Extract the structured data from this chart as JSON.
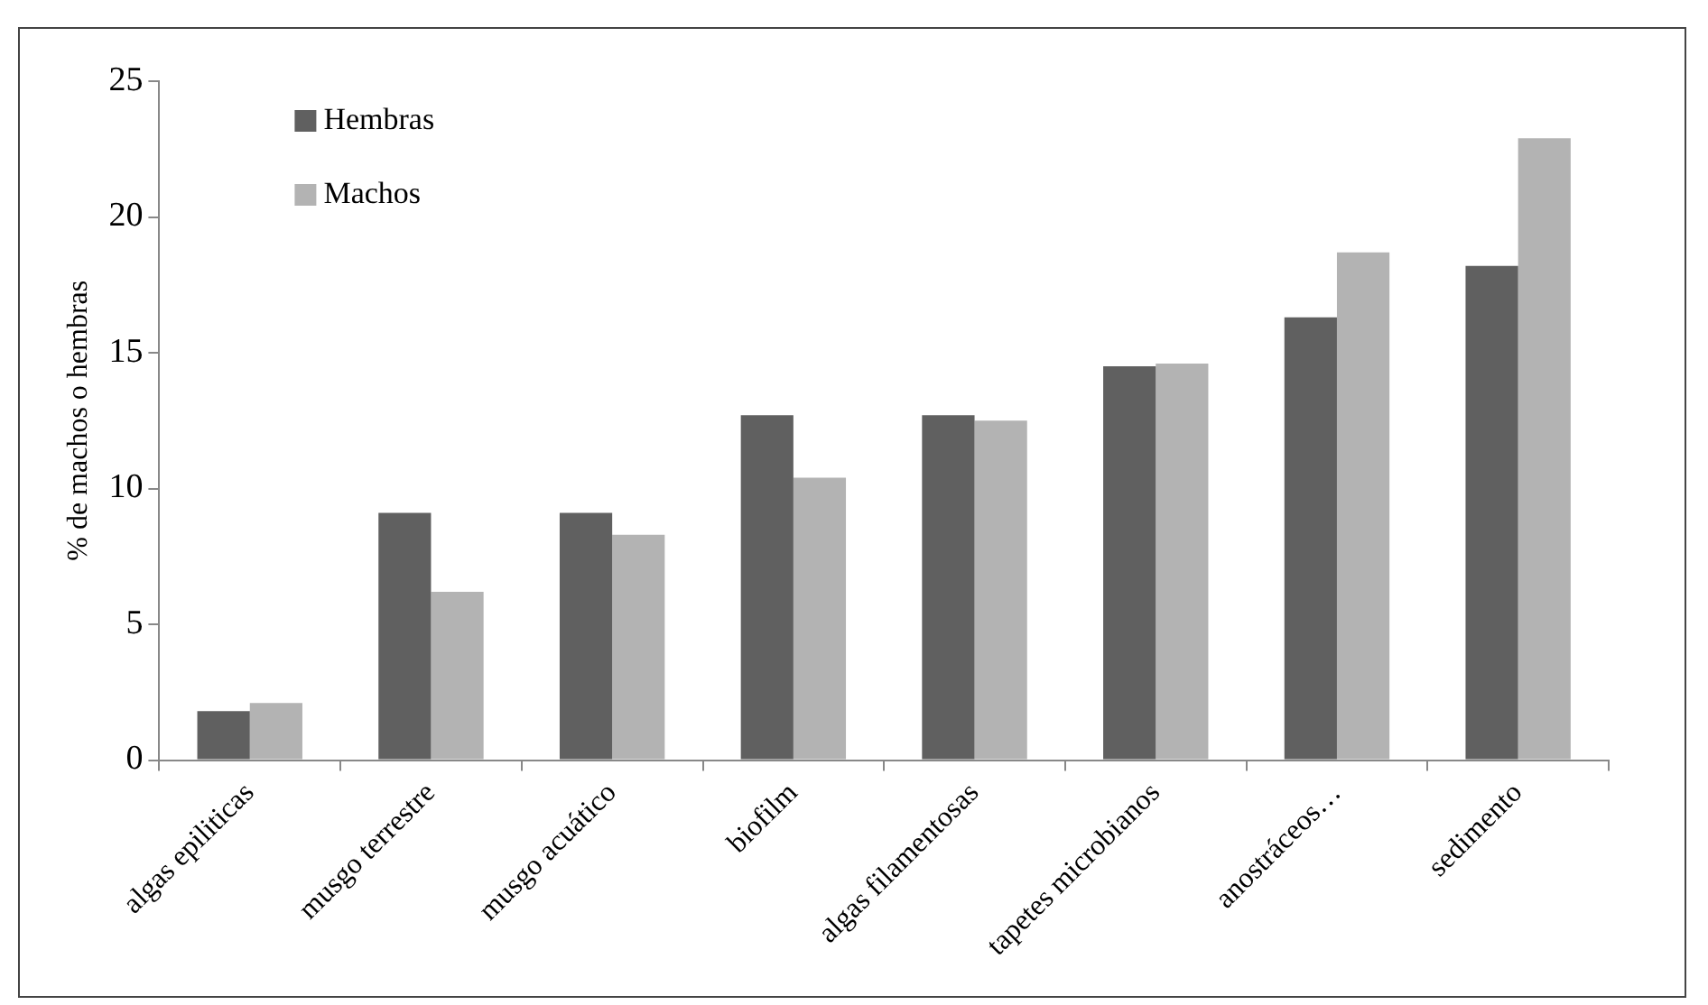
{
  "chart_data": {
    "type": "bar",
    "ylabel": "% de machos o hembras",
    "categories": [
      "algas epiliticas",
      "musgo terrestre",
      "musgo acuático",
      "biofilm",
      "algas filamentosas",
      "tapetes microbianos",
      "anostráceos…",
      "sedimento"
    ],
    "series": [
      {
        "name": "Hembras",
        "color": "#606060",
        "values": [
          1.8,
          9.1,
          9.1,
          12.7,
          12.7,
          14.5,
          16.3,
          18.2
        ]
      },
      {
        "name": "Machos",
        "color": "#b3b3b3",
        "values": [
          2.1,
          6.2,
          8.3,
          10.4,
          12.5,
          14.6,
          18.7,
          22.9
        ]
      }
    ],
    "ylim": [
      0,
      25
    ],
    "yticks": [
      0,
      5,
      10,
      15,
      20,
      25
    ],
    "grid": false,
    "legend": "top left"
  }
}
